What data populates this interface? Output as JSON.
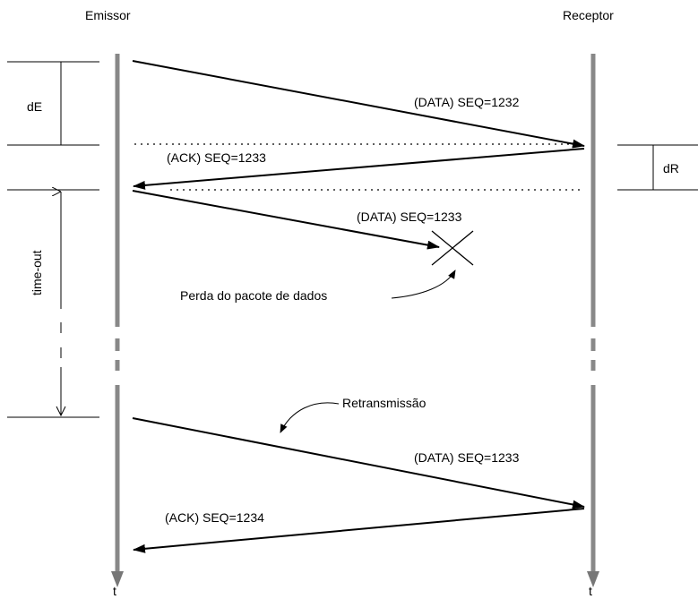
{
  "actors": {
    "sender": "Emissor",
    "receiver": "Receptor"
  },
  "time_axis_label": "t",
  "intervals": {
    "sender_delay": "dE",
    "receiver_delay": "dR",
    "timeout": "time-out"
  },
  "messages": [
    {
      "label": "(DATA) SEQ=1232",
      "direction": "sender-to-receiver"
    },
    {
      "label": "(ACK) SEQ=1233",
      "direction": "receiver-to-sender"
    },
    {
      "label": "(DATA) SEQ=1233",
      "direction": "sender-to-receiver",
      "lost": true
    },
    {
      "label": "(DATA) SEQ=1233",
      "direction": "sender-to-receiver"
    },
    {
      "label": "(ACK) SEQ=1234",
      "direction": "receiver-to-sender"
    }
  ],
  "annotations": {
    "loss": "Perda do pacote de dados",
    "retransmission": "Retransmissão"
  },
  "colors": {
    "timeline": "#888888",
    "ink": "#000000"
  }
}
